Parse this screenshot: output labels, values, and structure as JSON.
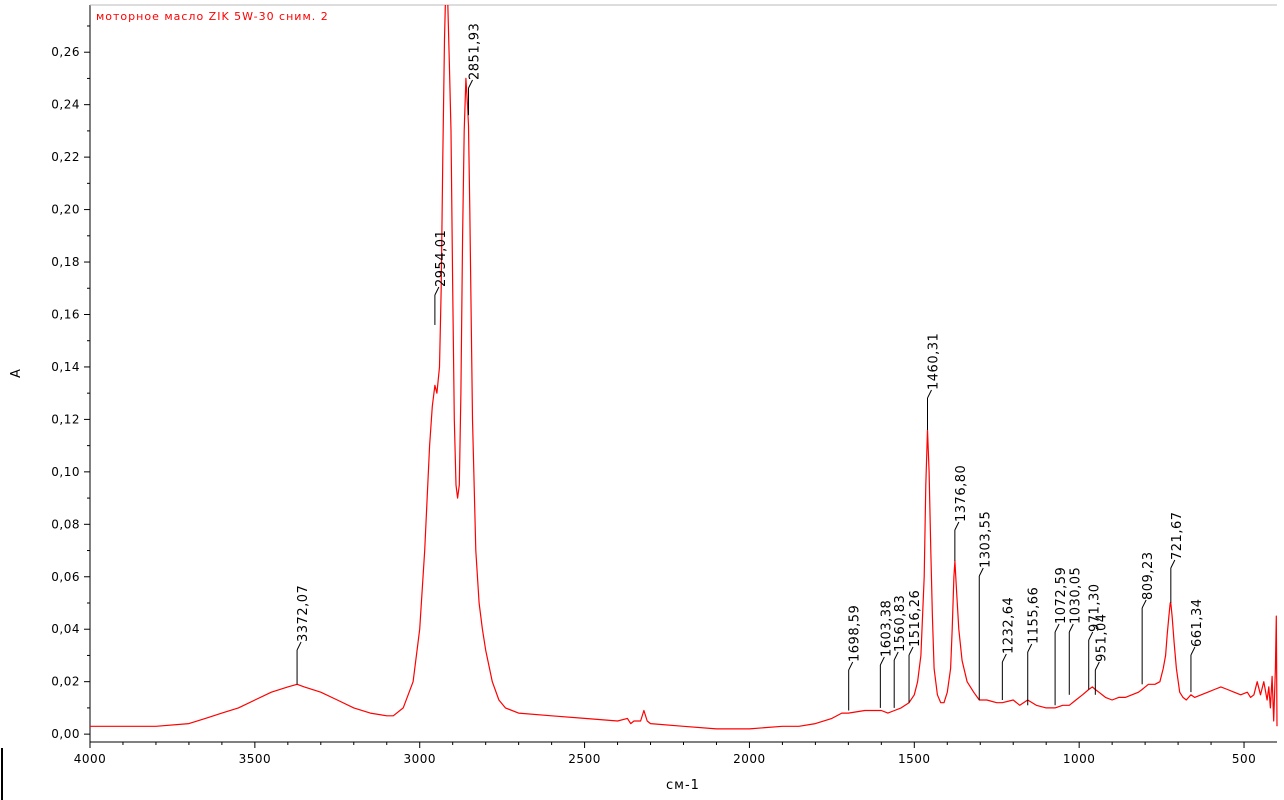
{
  "chart_data": {
    "type": "line",
    "title": "моторное масло ZIK  5W-30 сним. 2",
    "xlabel": "см-1",
    "ylabel": "A",
    "xlim": [
      4000,
      400
    ],
    "ylim": [
      -0.003,
      0.278
    ],
    "x_ticks": [
      "4000",
      "3500",
      "3000",
      "2500",
      "2000",
      "1500",
      "1000",
      "500"
    ],
    "y_ticks": [
      "0,00",
      "0,02",
      "0,04",
      "0,06",
      "0,08",
      "0,10",
      "0,12",
      "0,14",
      "0,16",
      "0,18",
      "0,20",
      "0,22",
      "0,24",
      "0,26"
    ],
    "grid": false,
    "line_color": "#ff0000",
    "series": [
      {
        "x": [
          4000,
          3800,
          3700,
          3650,
          3600,
          3550,
          3500,
          3450,
          3400,
          3372,
          3350,
          3300,
          3250,
          3200,
          3150,
          3100,
          3080,
          3050,
          3020,
          3000,
          2985,
          2970,
          2962,
          2954,
          2948,
          2940,
          2935,
          2930,
          2925,
          2920,
          2915,
          2910,
          2905,
          2900,
          2895,
          2890,
          2885,
          2880,
          2875,
          2870,
          2865,
          2860,
          2855,
          2852,
          2848,
          2840,
          2830,
          2820,
          2810,
          2800,
          2780,
          2760,
          2740,
          2700,
          2600,
          2500,
          2400,
          2370,
          2360,
          2350,
          2330,
          2320,
          2310,
          2300,
          2200,
          2100,
          2000,
          1900,
          1850,
          1800,
          1750,
          1720,
          1700,
          1650,
          1600,
          1580,
          1560,
          1540,
          1516,
          1500,
          1490,
          1480,
          1470,
          1465,
          1460,
          1455,
          1450,
          1445,
          1440,
          1430,
          1420,
          1410,
          1400,
          1390,
          1385,
          1380,
          1377,
          1372,
          1365,
          1355,
          1340,
          1320,
          1303,
          1280,
          1250,
          1233,
          1200,
          1180,
          1156,
          1130,
          1100,
          1073,
          1050,
          1030,
          1010,
          990,
          971,
          960,
          951,
          940,
          920,
          900,
          880,
          860,
          840,
          820,
          809,
          790,
          770,
          755,
          745,
          738,
          733,
          728,
          724,
          722,
          718,
          712,
          705,
          695,
          685,
          675,
          668,
          661,
          650,
          630,
          610,
          590,
          570,
          550,
          530,
          510,
          490,
          480,
          470,
          460,
          450,
          440,
          430,
          425,
          420,
          415,
          410,
          405,
          402,
          400
        ],
        "y": [
          0.003,
          0.003,
          0.004,
          0.006,
          0.008,
          0.01,
          0.013,
          0.016,
          0.018,
          0.019,
          0.018,
          0.016,
          0.013,
          0.01,
          0.008,
          0.007,
          0.007,
          0.01,
          0.02,
          0.04,
          0.07,
          0.11,
          0.125,
          0.133,
          0.13,
          0.14,
          0.17,
          0.22,
          0.265,
          0.29,
          0.28,
          0.255,
          0.23,
          0.17,
          0.12,
          0.095,
          0.09,
          0.095,
          0.13,
          0.19,
          0.23,
          0.25,
          0.24,
          0.232,
          0.2,
          0.12,
          0.07,
          0.05,
          0.04,
          0.032,
          0.02,
          0.013,
          0.01,
          0.008,
          0.007,
          0.006,
          0.005,
          0.006,
          0.004,
          0.005,
          0.005,
          0.009,
          0.005,
          0.004,
          0.003,
          0.002,
          0.002,
          0.003,
          0.003,
          0.004,
          0.006,
          0.008,
          0.008,
          0.009,
          0.009,
          0.008,
          0.009,
          0.01,
          0.012,
          0.015,
          0.02,
          0.03,
          0.06,
          0.095,
          0.116,
          0.1,
          0.07,
          0.045,
          0.025,
          0.015,
          0.012,
          0.012,
          0.016,
          0.025,
          0.04,
          0.06,
          0.066,
          0.055,
          0.04,
          0.028,
          0.02,
          0.016,
          0.013,
          0.013,
          0.012,
          0.012,
          0.013,
          0.011,
          0.013,
          0.011,
          0.01,
          0.01,
          0.011,
          0.011,
          0.013,
          0.015,
          0.017,
          0.018,
          0.017,
          0.016,
          0.014,
          0.013,
          0.014,
          0.014,
          0.015,
          0.016,
          0.017,
          0.019,
          0.019,
          0.02,
          0.025,
          0.03,
          0.038,
          0.045,
          0.05,
          0.05,
          0.045,
          0.035,
          0.025,
          0.016,
          0.014,
          0.013,
          0.014,
          0.015,
          0.014,
          0.015,
          0.016,
          0.017,
          0.018,
          0.017,
          0.016,
          0.015,
          0.016,
          0.014,
          0.015,
          0.02,
          0.015,
          0.02,
          0.013,
          0.018,
          0.01,
          0.022,
          0.005,
          0.025,
          0.045,
          0.003
        ]
      }
    ],
    "peak_labels": [
      {
        "x": 3372,
        "y": 0.019,
        "label": "3372,07"
      },
      {
        "x": 2954,
        "y": 0.156,
        "label": "2954,01"
      },
      {
        "x": 2852,
        "y": 0.236,
        "label": "2851,93"
      },
      {
        "x": 1699,
        "y": 0.009,
        "label": "1698,59"
      },
      {
        "x": 1603,
        "y": 0.01,
        "label": "1603,38"
      },
      {
        "x": 1561,
        "y": 0.01,
        "label": "1560,83"
      },
      {
        "x": 1516,
        "y": 0.012,
        "label": "1516,26"
      },
      {
        "x": 1460,
        "y": 0.116,
        "label": "1460,31"
      },
      {
        "x": 1377,
        "y": 0.066,
        "label": "1376,80"
      },
      {
        "x": 1303,
        "y": 0.013,
        "label": "1303,55"
      },
      {
        "x": 1233,
        "y": 0.013,
        "label": "1232,64"
      },
      {
        "x": 1156,
        "y": 0.011,
        "label": "1155,66"
      },
      {
        "x": 1073,
        "y": 0.011,
        "label": "1072,59"
      },
      {
        "x": 1030,
        "y": 0.015,
        "label": "1030,05"
      },
      {
        "x": 971,
        "y": 0.017,
        "label": "971,30"
      },
      {
        "x": 951,
        "y": 0.015,
        "label": "951,04"
      },
      {
        "x": 809,
        "y": 0.019,
        "label": "809,23"
      },
      {
        "x": 722,
        "y": 0.05,
        "label": "721,67"
      },
      {
        "x": 661,
        "y": 0.016,
        "label": "661,34"
      }
    ]
  }
}
